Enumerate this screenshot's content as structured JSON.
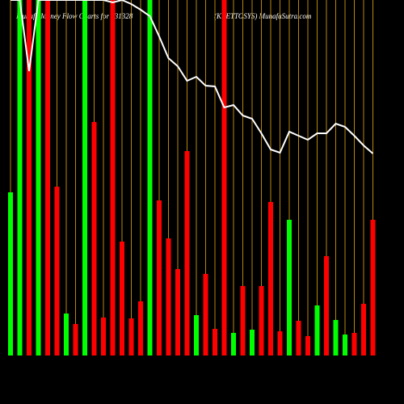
{
  "chart_data": {
    "type": "bar",
    "title": "Munafa Money Flow Charts for 531328",
    "subtitle": "(KRETTOSYS) MunafaSutra.com",
    "categories": [
      null,
      null,
      null,
      null,
      null,
      null,
      null,
      null,
      null,
      null,
      null,
      null,
      null,
      null,
      null,
      null,
      null,
      null,
      null,
      null,
      null,
      null,
      null,
      null,
      null,
      null,
      null,
      null,
      null,
      null,
      null,
      null,
      null,
      null,
      null,
      null,
      null,
      null,
      null,
      null
    ],
    "values": [
      202,
      440,
      440,
      440,
      440,
      209,
      52,
      39,
      440,
      289,
      47,
      440,
      141,
      46,
      67,
      440,
      192,
      145,
      107,
      253,
      50,
      101,
      33,
      440,
      28,
      86,
      32,
      86,
      190,
      30,
      168,
      43,
      24,
      62,
      123,
      44,
      26,
      28,
      64,
      168
    ],
    "bar_colors": [
      "#00ff00",
      "#00ff00",
      "#ff0000",
      "#00ff00",
      "#ff0000",
      "#ff0000",
      "#00ff00",
      "#ff0000",
      "#00ff00",
      "#ff0000",
      "#ff0000",
      "#ff0000",
      "#ff0000",
      "#ff0000",
      "#ff0000",
      "#00ff00",
      "#ff0000",
      "#ff0000",
      "#ff0000",
      "#ff0000",
      "#00ff00",
      "#ff0000",
      "#ff0000",
      "#ff0000",
      "#00ff00",
      "#ff0000",
      "#00ff00",
      "#ff0000",
      "#ff0000",
      "#ff0000",
      "#00ff00",
      "#ff0000",
      "#ff0000",
      "#00ff00",
      "#ff0000",
      "#00ff00",
      "#00ff00",
      "#ff0000",
      "#ff0000",
      "#ff0000"
    ],
    "line": {
      "color": "#ffffff",
      "values": [
        440,
        440,
        352,
        440,
        440,
        440,
        440,
        440,
        440,
        440,
        440,
        437,
        440,
        435,
        428,
        420,
        395,
        368,
        358,
        340,
        345,
        334,
        333,
        307,
        310,
        297,
        293,
        275,
        255,
        251,
        277,
        272,
        267,
        275,
        275,
        287,
        283,
        272,
        260,
        250
      ]
    },
    "grid_color": "#b8860b",
    "ylim": [
      0,
      440
    ]
  }
}
